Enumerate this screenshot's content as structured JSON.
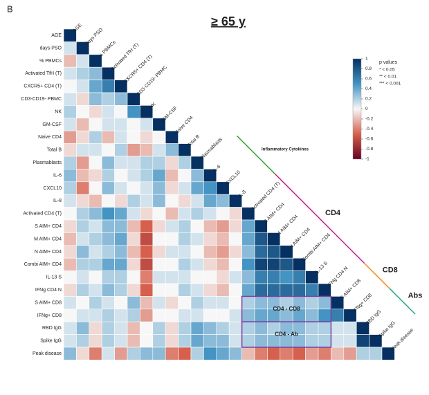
{
  "chart_data": {
    "type": "heatmap",
    "panel": "B",
    "title": "≥ 65 y",
    "variables": [
      "AGE",
      "days PSO",
      "% PBMCs",
      "Activated TfH (T)",
      "CXCR5+ CD4 (T)",
      "CD3-CD19- PBMC",
      "NK",
      "GM-CSF",
      "Naive CD4",
      "Total B",
      "Plasmablasts",
      "IL-6",
      "CXCL10",
      "IL-8",
      "Activated CD4 (T)",
      "S AIM+ CD4",
      "M AIM+ CD4",
      "N AIM+ CD4",
      "Combi AIM+ CD4",
      "IL-13 S",
      "IFNg CD4 N",
      "S AIM+ CD8",
      "IFNg+ CD8",
      "RBD IgG",
      "Spike IgG",
      "Peak disease"
    ],
    "matrix": [
      [
        1
      ],
      [
        0.1,
        1
      ],
      [
        -0.2,
        0.1,
        1
      ],
      [
        0.1,
        0.2,
        0.3,
        1
      ],
      [
        0.0,
        0.1,
        0.4,
        0.6,
        1
      ],
      [
        0.1,
        -0.1,
        0.3,
        0.2,
        0.3,
        1
      ],
      [
        0.2,
        0.0,
        -0.1,
        0.1,
        0.0,
        0.5,
        1
      ],
      [
        0.1,
        -0.2,
        0.0,
        0.1,
        0.1,
        0.0,
        0.1,
        1
      ],
      [
        -0.3,
        -0.1,
        0.2,
        -0.2,
        0.1,
        0.0,
        -0.1,
        0.0,
        1
      ],
      [
        -0.1,
        0.1,
        0.1,
        0.0,
        0.2,
        -0.3,
        -0.2,
        0.1,
        0.3,
        1
      ],
      [
        0.2,
        -0.3,
        0.0,
        0.3,
        0.1,
        0.1,
        0.2,
        0.2,
        -0.1,
        0.2,
        1
      ],
      [
        0.3,
        -0.2,
        -0.1,
        0.2,
        0.0,
        0.1,
        0.2,
        0.4,
        -0.2,
        0.0,
        0.3,
        1
      ],
      [
        0.2,
        -0.4,
        0.0,
        0.3,
        0.1,
        0.0,
        0.1,
        0.3,
        -0.1,
        0.1,
        0.4,
        0.5,
        1
      ],
      [
        0.1,
        -0.1,
        -0.2,
        0.0,
        -0.1,
        0.2,
        0.1,
        0.3,
        0.0,
        -0.1,
        0.1,
        0.4,
        0.3,
        1
      ],
      [
        0.0,
        0.2,
        0.3,
        0.5,
        0.4,
        0.1,
        -0.1,
        0.0,
        -0.2,
        0.1,
        0.2,
        0.1,
        0.0,
        -0.1,
        1
      ],
      [
        -0.1,
        0.2,
        0.1,
        0.3,
        0.3,
        -0.2,
        -0.5,
        -0.1,
        0.1,
        0.2,
        0.0,
        -0.2,
        -0.3,
        -0.1,
        0.4,
        1
      ],
      [
        -0.2,
        0.1,
        0.2,
        0.3,
        0.4,
        -0.1,
        -0.6,
        0.0,
        0.0,
        0.2,
        0.1,
        -0.1,
        -0.2,
        0.0,
        0.4,
        0.8,
        1
      ],
      [
        -0.1,
        0.3,
        0.1,
        0.2,
        0.3,
        -0.2,
        -0.5,
        -0.1,
        0.1,
        0.1,
        0.0,
        -0.2,
        -0.3,
        -0.1,
        0.3,
        0.7,
        0.8,
        1
      ],
      [
        -0.2,
        0.2,
        0.2,
        0.4,
        0.4,
        -0.1,
        -0.6,
        0.0,
        0.0,
        0.2,
        0.1,
        -0.1,
        -0.2,
        0.0,
        0.5,
        0.9,
        0.9,
        0.8,
        1
      ],
      [
        0.0,
        0.1,
        0.0,
        0.2,
        0.2,
        0.0,
        -0.4,
        0.1,
        0.1,
        0.1,
        0.0,
        0.0,
        -0.1,
        0.1,
        0.3,
        0.6,
        0.6,
        0.5,
        0.6,
        1
      ],
      [
        -0.1,
        0.2,
        0.1,
        0.3,
        0.2,
        -0.1,
        -0.5,
        0.0,
        0.0,
        0.2,
        0.1,
        -0.1,
        -0.2,
        0.0,
        0.4,
        0.7,
        0.7,
        0.7,
        0.7,
        0.6,
        1
      ],
      [
        0.1,
        0.0,
        0.2,
        0.1,
        0.0,
        0.3,
        -0.2,
        0.1,
        -0.1,
        0.0,
        0.2,
        0.1,
        0.1,
        0.0,
        0.2,
        0.3,
        0.3,
        0.2,
        0.3,
        0.2,
        0.3,
        1
      ],
      [
        0.0,
        0.1,
        0.1,
        0.2,
        0.1,
        0.2,
        -0.3,
        0.0,
        0.0,
        0.1,
        0.1,
        0.0,
        0.0,
        0.1,
        0.3,
        0.4,
        0.4,
        0.3,
        0.4,
        0.3,
        0.5,
        0.6,
        1
      ],
      [
        0.1,
        0.3,
        -0.1,
        0.2,
        0.1,
        -0.2,
        0.0,
        0.2,
        -0.1,
        0.2,
        0.4,
        0.3,
        0.2,
        0.1,
        0.2,
        0.3,
        0.2,
        0.3,
        0.3,
        0.2,
        0.2,
        0.1,
        0.1,
        1
      ],
      [
        0.1,
        0.2,
        -0.1,
        0.2,
        0.1,
        -0.2,
        0.0,
        0.2,
        -0.1,
        0.2,
        0.4,
        0.3,
        0.3,
        0.1,
        0.2,
        0.3,
        0.3,
        0.3,
        0.3,
        0.2,
        0.2,
        0.1,
        0.1,
        0.9,
        1
      ],
      [
        0.3,
        -0.1,
        -0.4,
        0.1,
        -0.3,
        0.2,
        0.3,
        0.3,
        -0.4,
        -0.5,
        0.2,
        0.5,
        0.4,
        0.3,
        -0.2,
        -0.4,
        -0.5,
        -0.4,
        -0.5,
        -0.3,
        -0.4,
        -0.2,
        -0.3,
        0.2,
        0.2,
        1
      ]
    ],
    "zlim": [
      -1,
      1
    ],
    "colorbar_ticks": [
      1,
      0.8,
      0.6,
      0.4,
      0.2,
      0,
      -0.2,
      -0.4,
      -0.6,
      -0.8,
      -1
    ],
    "p_value_legend": {
      "title": "p values",
      "items": [
        "* < 0.05",
        "** < 0.01",
        "*** < 0.001"
      ]
    },
    "groups": [
      {
        "label": "Inflammatory Cytokines",
        "color": "#2ca02c"
      },
      {
        "label": "CD4",
        "color": "#c2188b"
      },
      {
        "label": "CD8",
        "color": "#f28c1e"
      },
      {
        "label": "Abs",
        "color": "#1fa98a"
      }
    ],
    "boxes": [
      {
        "label": "CD4 - CD8",
        "color": "#7b3fa0"
      },
      {
        "label": "CD4 - Ab",
        "color": "#7b3fa0"
      }
    ]
  }
}
